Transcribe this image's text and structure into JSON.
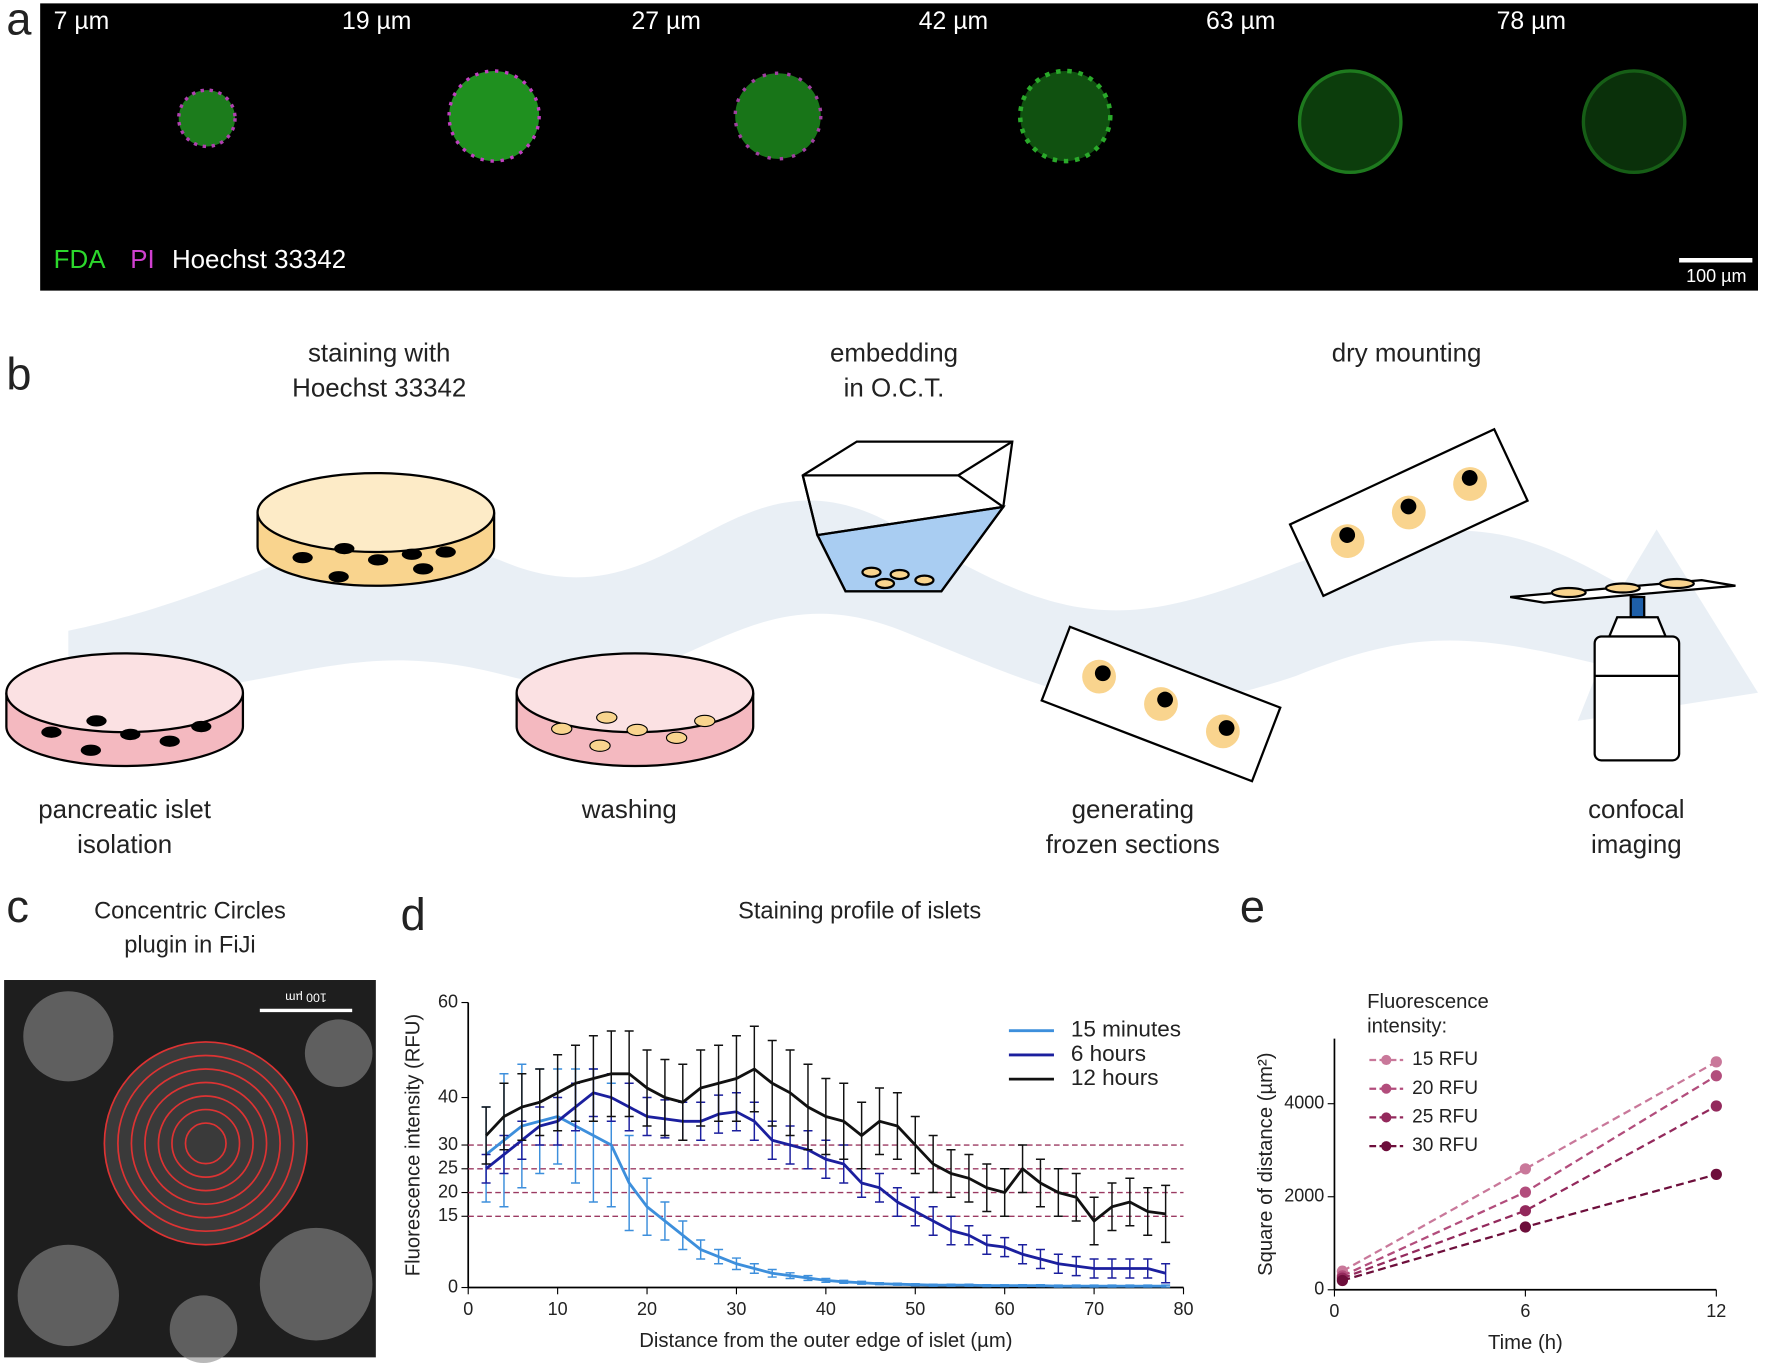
{
  "panel_a": {
    "label": "a",
    "depths": [
      "7 µm",
      "19 µm",
      "27 µm",
      "42 µm",
      "63 µm",
      "78 µm"
    ],
    "stains": [
      "FDA",
      "PI",
      "Hoechst 33342"
    ],
    "scale_bar": "100 µm"
  },
  "panel_b": {
    "label": "b",
    "steps": [
      {
        "lines": [
          "pancreatic islet",
          "isolation"
        ]
      },
      {
        "lines": [
          "staining with",
          "Hoechst 33342"
        ]
      },
      {
        "lines": [
          "washing"
        ]
      },
      {
        "lines": [
          "embedding",
          "in O.C.T."
        ]
      },
      {
        "lines": [
          "generating",
          "frozen sections"
        ]
      },
      {
        "lines": [
          "dry mounting"
        ]
      },
      {
        "lines": [
          "confocal",
          "imaging"
        ]
      }
    ]
  },
  "panel_c": {
    "label": "c",
    "title": [
      "Concentric Circles",
      "plugin in FiJi"
    ],
    "scale_bar": "100 µm"
  },
  "chart_data": [
    {
      "type": "line",
      "panel": "d",
      "title": "Staining profile of islets",
      "x_label": "Distance from the outer edge of islet (µm)",
      "y_label": "Fluorescence intensity (RFU)",
      "x": [
        2,
        4,
        6,
        8,
        10,
        12,
        14,
        16,
        18,
        20,
        22,
        24,
        26,
        28,
        30,
        32,
        34,
        36,
        38,
        40,
        42,
        44,
        46,
        48,
        50,
        52,
        54,
        56,
        58,
        60,
        62,
        64,
        66,
        68,
        70,
        72,
        74,
        76,
        78
      ],
      "xlim": [
        0,
        80
      ],
      "xticks": [
        0,
        10,
        20,
        30,
        40,
        50,
        60,
        70,
        80
      ],
      "ylim": [
        0,
        60
      ],
      "yticks": [
        0,
        15,
        20,
        25,
        30,
        40,
        60
      ],
      "reference_lines": [
        15,
        20,
        25,
        30
      ],
      "reference_color": "#9b3a62",
      "legend": "top-right",
      "series": [
        {
          "name": "15 minutes",
          "color": "#3d8fdc",
          "values": [
            28,
            31,
            34,
            35,
            36,
            34,
            32,
            30,
            22,
            17,
            14,
            11,
            8,
            6.5,
            5,
            4,
            3,
            2.5,
            2,
            1.5,
            1.2,
            1,
            0.8,
            0.7,
            0.6,
            0.5,
            0.5,
            0.5,
            0.4,
            0.4,
            0.4,
            0.4,
            0.3,
            0.3,
            0.3,
            0.3,
            0.3,
            0.3,
            0.3
          ],
          "errors": [
            10,
            14,
            13,
            11,
            10,
            12,
            14,
            13,
            10,
            6,
            4,
            3,
            2,
            1.5,
            1.2,
            1,
            0.8,
            0.6,
            0.5,
            0.4,
            0.3,
            0.3,
            0.2,
            0.2,
            0.2,
            0.2,
            0.2,
            0.2,
            0.2,
            0.2,
            0.2,
            0.2,
            0.2,
            0.2,
            0.2,
            0.2,
            0.2,
            0.2,
            0.2
          ]
        },
        {
          "name": "6 hours",
          "color": "#1b1f9e",
          "values": [
            25,
            28,
            31,
            34,
            35,
            38,
            41,
            40,
            38,
            36,
            35.5,
            35,
            35,
            36.5,
            37,
            35,
            31,
            30,
            29,
            27,
            26,
            22,
            21,
            18,
            16,
            14,
            12,
            11,
            9,
            8.5,
            7,
            6,
            5,
            4.5,
            4,
            4,
            4,
            4,
            3
          ],
          "errors": [
            3,
            4,
            4,
            4,
            5,
            5,
            5,
            5,
            5,
            4,
            4,
            4,
            4,
            4,
            4,
            4,
            4,
            4,
            4,
            4,
            4,
            3,
            3,
            3,
            3,
            3,
            3,
            2,
            2,
            2,
            2,
            2,
            2,
            2,
            2,
            2,
            2,
            2,
            2
          ]
        },
        {
          "name": "12 hours",
          "color": "#111111",
          "values": [
            32,
            36,
            38,
            39,
            41,
            43,
            44,
            45,
            45,
            42,
            40,
            39,
            42,
            43,
            44,
            46,
            43,
            41,
            38,
            36,
            35,
            32,
            35,
            34,
            30,
            26,
            24,
            23,
            21,
            20,
            25,
            22,
            20,
            19,
            14,
            17,
            18,
            16,
            15.5
          ],
          "errors": [
            6,
            7,
            7,
            7,
            8,
            8,
            9,
            9,
            9,
            8,
            8,
            8,
            8,
            8,
            9,
            9,
            9,
            9,
            9,
            8,
            8,
            7,
            7,
            7,
            6,
            6,
            5,
            5,
            5,
            5,
            5,
            5,
            5,
            5,
            5,
            5,
            5,
            5,
            6
          ]
        }
      ]
    },
    {
      "type": "scatter",
      "panel": "e",
      "x_label": "Time (h)",
      "y_label": "Square of distance (µm²)",
      "legend_title": [
        "Fluorescence",
        "intensity:"
      ],
      "legend": "top-left",
      "line_style": "dashed",
      "x": [
        0.25,
        6,
        12
      ],
      "xlim": [
        0,
        12
      ],
      "xticks": [
        0,
        6,
        12
      ],
      "ylim": [
        0,
        5400
      ],
      "yticks": [
        0,
        2000,
        4000
      ],
      "series": [
        {
          "name": "15 RFU",
          "color": "#c9789a",
          "values": [
            400,
            2600,
            4900
          ]
        },
        {
          "name": "20 RFU",
          "color": "#b24d7c",
          "values": [
            300,
            2100,
            4600
          ]
        },
        {
          "name": "25 RFU",
          "color": "#93295c",
          "values": [
            250,
            1700,
            3950
          ]
        },
        {
          "name": "30 RFU",
          "color": "#6d0e3b",
          "values": [
            200,
            1350,
            2480
          ]
        }
      ]
    }
  ]
}
